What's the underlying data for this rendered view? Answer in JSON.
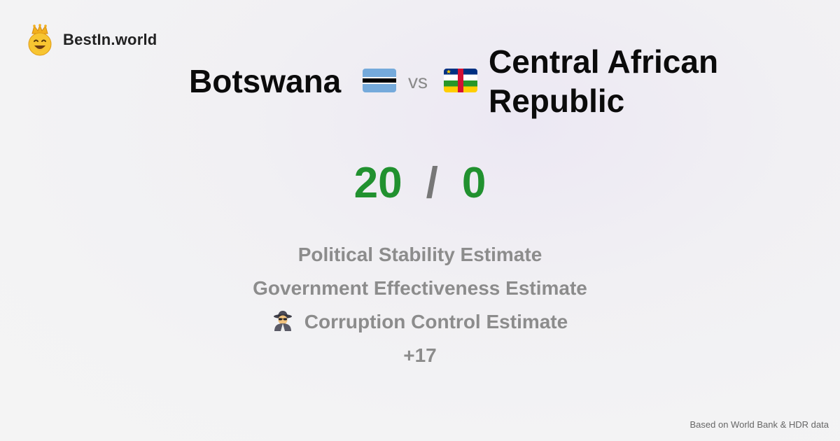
{
  "brand": {
    "name": "BestIn.world",
    "icon": "crowned-smiley-icon"
  },
  "comparison": {
    "country_a": "Botswana",
    "country_a_flag": "botswana-flag-icon",
    "vs_label": "vs",
    "country_b": "Central African Republic",
    "country_b_flag": "central-african-republic-flag-icon"
  },
  "score": {
    "a": "20",
    "separator": "/",
    "b": "0",
    "color": "#21912f"
  },
  "metrics": [
    {
      "label": "Political Stability Estimate"
    },
    {
      "label": "Government Effectiveness Estimate"
    },
    {
      "label": "Corruption Control Estimate",
      "icon": "spy-detective-icon"
    }
  ],
  "more_count": "+17",
  "footer": {
    "source": "Based on World Bank & HDR data"
  }
}
